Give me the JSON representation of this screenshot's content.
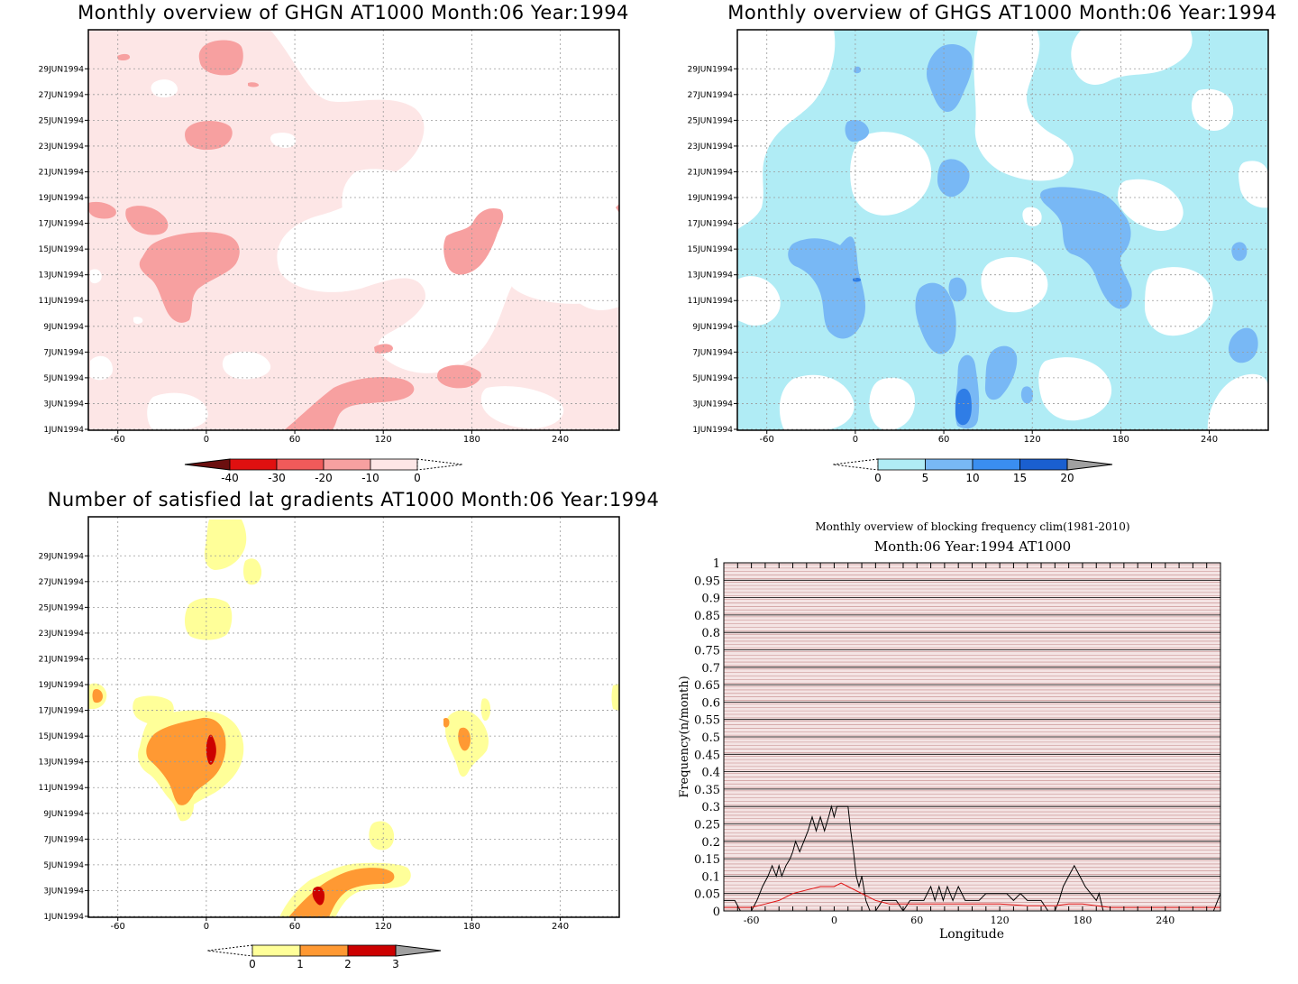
{
  "panels": {
    "ghgn": {
      "title": "Monthly overview of GHGN AT1000 Month:06 Year:1994",
      "colorbar": {
        "labels": [
          "-40",
          "-30",
          "-20",
          "-10",
          "0"
        ],
        "colors": [
          "#6b0f0f",
          "#e01010",
          "#f05a5a",
          "#f7a0a0",
          "#fde6e6"
        ]
      },
      "fill_colors": {
        "background": "#fde6e6",
        "light": "#ffffff",
        "strong": "#f7a0a0"
      }
    },
    "ghgs": {
      "title": "Monthly overview of GHGS AT1000 Month:06 Year:1994",
      "colorbar": {
        "labels": [
          "0",
          "5",
          "10",
          "15",
          "20"
        ],
        "colors": [
          "#b0ecf5",
          "#78b8f5",
          "#3a8ef0",
          "#1a5fd0",
          "#a0a0a0"
        ]
      },
      "fill_colors": {
        "background": "#b0ecf5",
        "light": "#ffffff",
        "strong": "#78b8f5",
        "stronger": "#2f7de6"
      }
    },
    "grad": {
      "title": "Number of satisfied lat gradients AT1000 Month:06 Year:1994",
      "colorbar": {
        "labels": [
          "0",
          "1",
          "2",
          "3"
        ],
        "colors": [
          "#ffff99",
          "#ff9933",
          "#cc0000",
          "#a0a0a0"
        ]
      },
      "fill_colors": {
        "level1": "#ffff99",
        "level2": "#ff9933",
        "level3": "#cc0000"
      }
    },
    "block": {
      "title": "Monthly overview of blocking frequency clim(1981-2010)",
      "subtitle": "Month:06 Year:1994  AT1000"
    }
  },
  "axes": {
    "dates": [
      "1JUN1994",
      "3JUN1994",
      "5JUN1994",
      "7JUN1994",
      "9JUN1994",
      "11JUN1994",
      "13JUN1994",
      "15JUN1994",
      "17JUN1994",
      "19JUN1994",
      "21JUN1994",
      "23JUN1994",
      "25JUN1994",
      "27JUN1994",
      "29JUN1994"
    ],
    "longitudes": [
      "-60",
      "0",
      "60",
      "120",
      "180",
      "240"
    ]
  },
  "chart_data": [
    {
      "type": "heatmap",
      "title": "Monthly overview of GHGN AT1000 Month:06 Year:1994",
      "x_ticks": [
        -60,
        0,
        60,
        120,
        180,
        240
      ],
      "xlim": [
        -80,
        280
      ],
      "y_ticks": [
        "1JUN1994",
        "3JUN1994",
        "5JUN1994",
        "7JUN1994",
        "9JUN1994",
        "11JUN1994",
        "13JUN1994",
        "15JUN1994",
        "17JUN1994",
        "19JUN1994",
        "21JUN1994",
        "23JUN1994",
        "25JUN1994",
        "27JUN1994",
        "29JUN1994"
      ],
      "levels": [
        -40,
        -30,
        -20,
        -10,
        0
      ],
      "grid": true
    },
    {
      "type": "heatmap",
      "title": "Monthly overview of GHGS AT1000 Month:06 Year:1994",
      "x_ticks": [
        -60,
        0,
        60,
        120,
        180,
        240
      ],
      "xlim": [
        -80,
        280
      ],
      "y_ticks": [
        "1JUN1994",
        "3JUN1994",
        "5JUN1994",
        "7JUN1994",
        "9JUN1994",
        "11JUN1994",
        "13JUN1994",
        "15JUN1994",
        "17JUN1994",
        "19JUN1994",
        "21JUN1994",
        "23JUN1994",
        "25JUN1994",
        "27JUN1994",
        "29JUN1994"
      ],
      "levels": [
        0,
        5,
        10,
        15,
        20
      ],
      "grid": true
    },
    {
      "type": "heatmap",
      "title": "Number of satisfied lat gradients AT1000 Month:06 Year:1994",
      "x_ticks": [
        -60,
        0,
        60,
        120,
        180,
        240
      ],
      "xlim": [
        -80,
        280
      ],
      "y_ticks": [
        "1JUN1994",
        "3JUN1994",
        "5JUN1994",
        "7JUN1994",
        "9JUN1994",
        "11JUN1994",
        "13JUN1994",
        "15JUN1994",
        "17JUN1994",
        "19JUN1994",
        "21JUN1994",
        "23JUN1994",
        "25JUN1994",
        "27JUN1994",
        "29JUN1994"
      ],
      "levels": [
        0,
        1,
        2,
        3
      ],
      "grid": true
    },
    {
      "type": "line",
      "title": "Monthly overview of blocking frequency clim(1981-2010)",
      "subtitle": "Month:06 Year:1994  AT1000",
      "xlabel": "Longitude",
      "ylabel": "Frequency(n/month)",
      "xlim": [
        -80,
        280
      ],
      "ylim": [
        0,
        1
      ],
      "x_ticks": [
        -60,
        0,
        60,
        120,
        180,
        240
      ],
      "y_ticks": [
        "0",
        "0.05",
        "0.1",
        "0.15",
        "0.2",
        "0.25",
        "0.3",
        "0.35",
        "0.4",
        "0.45",
        "0.5",
        "0.55",
        "0.6",
        "0.65",
        "0.7",
        "0.75",
        "0.8",
        "0.85",
        "0.9",
        "0.95",
        "1"
      ],
      "background_color": "#f4e4e4",
      "series": [
        {
          "color": "#000000",
          "x": [
            -80,
            -72,
            -68,
            -63,
            -60,
            -56,
            -52,
            -48,
            -45,
            -42,
            -40,
            -38,
            -35,
            -32,
            -30,
            -28,
            -25,
            -22,
            -19,
            -16,
            -13,
            -10,
            -7,
            -4,
            -2,
            0,
            2,
            5,
            8,
            10,
            12,
            14,
            16,
            18,
            20,
            23,
            26,
            30,
            35,
            40,
            45,
            50,
            55,
            60,
            65,
            70,
            73,
            76,
            79,
            82,
            86,
            90,
            95,
            100,
            105,
            110,
            115,
            120,
            125,
            130,
            135,
            140,
            145,
            150,
            155,
            160,
            163,
            166,
            170,
            174,
            178,
            182,
            186,
            190,
            192,
            195,
            200,
            210,
            220,
            230,
            240,
            250,
            260,
            270,
            275,
            280
          ],
          "y": [
            0.03,
            0.03,
            0.0,
            0.0,
            0.0,
            0.03,
            0.07,
            0.1,
            0.13,
            0.1,
            0.13,
            0.1,
            0.13,
            0.15,
            0.17,
            0.2,
            0.17,
            0.2,
            0.23,
            0.27,
            0.23,
            0.27,
            0.23,
            0.27,
            0.3,
            0.27,
            0.3,
            0.3,
            0.3,
            0.3,
            0.23,
            0.17,
            0.1,
            0.07,
            0.1,
            0.03,
            0.0,
            0.0,
            0.03,
            0.03,
            0.03,
            0.0,
            0.03,
            0.03,
            0.03,
            0.07,
            0.03,
            0.07,
            0.03,
            0.07,
            0.03,
            0.07,
            0.03,
            0.03,
            0.03,
            0.05,
            0.05,
            0.05,
            0.05,
            0.03,
            0.05,
            0.03,
            0.03,
            0.03,
            0.0,
            0.0,
            0.03,
            0.07,
            0.1,
            0.13,
            0.1,
            0.07,
            0.05,
            0.03,
            0.05,
            0.0,
            0.0,
            0.0,
            0.0,
            0.0,
            0.0,
            0.0,
            0.0,
            0.0,
            0.0,
            0.05
          ]
        },
        {
          "color": "#e01010",
          "x": [
            -80,
            -70,
            -60,
            -50,
            -40,
            -30,
            -20,
            -10,
            0,
            5,
            10,
            20,
            30,
            40,
            50,
            60,
            70,
            80,
            90,
            100,
            120,
            140,
            160,
            170,
            180,
            190,
            200,
            220,
            240,
            260,
            280
          ],
          "y": [
            0.01,
            0.01,
            0.01,
            0.02,
            0.03,
            0.05,
            0.06,
            0.07,
            0.07,
            0.08,
            0.07,
            0.05,
            0.03,
            0.02,
            0.02,
            0.02,
            0.02,
            0.02,
            0.02,
            0.02,
            0.02,
            0.015,
            0.015,
            0.02,
            0.02,
            0.015,
            0.01,
            0.01,
            0.01,
            0.01,
            0.01
          ]
        }
      ]
    }
  ]
}
